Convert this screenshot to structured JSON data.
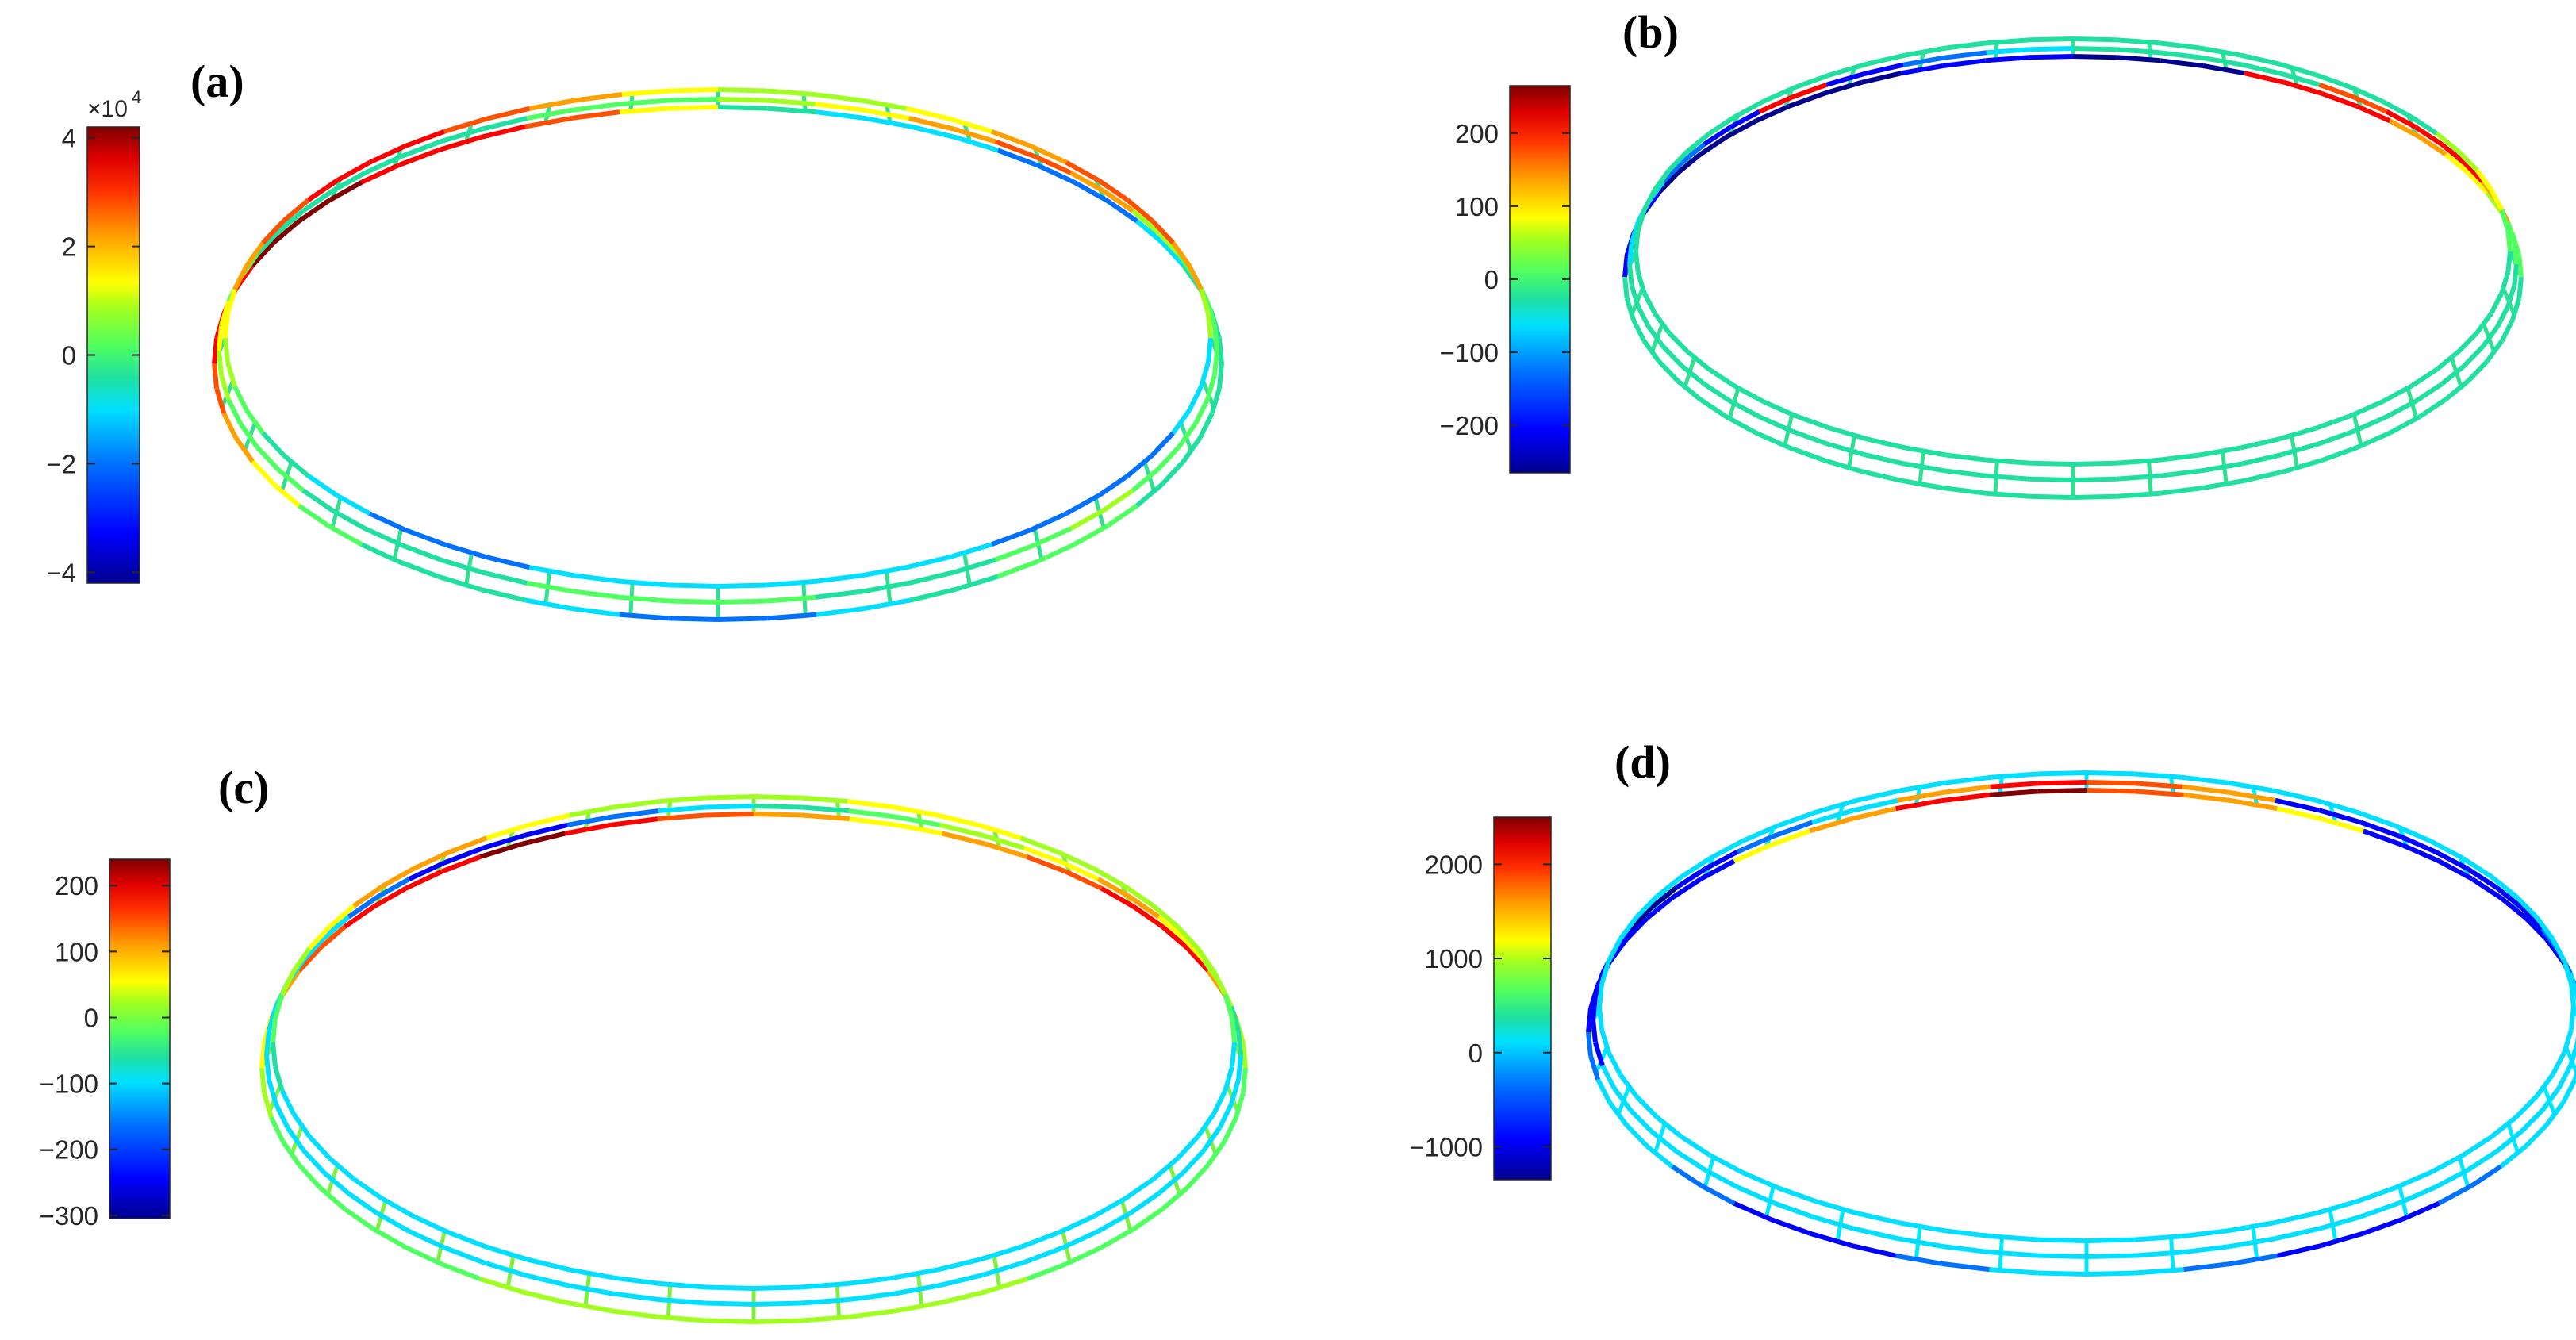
{
  "colormap": [
    "#00008f",
    "#0000ff",
    "#0070ff",
    "#00dfff",
    "#1fe0a0",
    "#50ff60",
    "#a0ff20",
    "#ffff00",
    "#ffa000",
    "#ff5000",
    "#ff0000",
    "#800000"
  ],
  "panels": [
    {
      "id": "a",
      "label": "(a)",
      "multiplier": "×10",
      "multiplier_exp": "4",
      "colorbar": {
        "min": -4.2,
        "max": 4.2,
        "ticks": [
          "4",
          "2",
          "0",
          "−2",
          "−4"
        ],
        "tick_values": [
          4,
          2,
          0,
          -2,
          -4
        ]
      },
      "rings": [
        {
          "name": "outer-ring",
          "palette": "a1"
        },
        {
          "name": "middle-ring",
          "palette": "a2"
        },
        {
          "name": "inner-ring",
          "palette": "a3"
        }
      ],
      "rung_color": "#30e090"
    },
    {
      "id": "b",
      "label": "(b)",
      "colorbar": {
        "min": -265,
        "max": 265,
        "ticks": [
          "200",
          "100",
          "0",
          "−100",
          "−200"
        ],
        "tick_values": [
          200,
          100,
          0,
          -100,
          -200
        ]
      },
      "rings": [
        {
          "name": "outer-ring",
          "palette": "b1"
        },
        {
          "name": "middle-ring",
          "palette": "b2"
        },
        {
          "name": "inner-ring",
          "palette": "b3"
        }
      ],
      "rung_color": "#30e090"
    },
    {
      "id": "c",
      "label": "(c)",
      "colorbar": {
        "min": -305,
        "max": 240,
        "ticks": [
          "200",
          "100",
          "0",
          "−100",
          "−200",
          "−300"
        ],
        "tick_values": [
          200,
          100,
          0,
          -100,
          -200,
          -300
        ]
      },
      "rings": [
        {
          "name": "outer-ring",
          "palette": "c1"
        },
        {
          "name": "middle-ring",
          "palette": "c2"
        },
        {
          "name": "inner-ring",
          "palette": "c3"
        }
      ],
      "rung_color": "#80f040"
    },
    {
      "id": "d",
      "label": "(d)",
      "colorbar": {
        "min": -1350,
        "max": 2500,
        "ticks": [
          "2000",
          "1000",
          "0",
          "−1000"
        ],
        "tick_values": [
          2000,
          1000,
          0,
          -1000
        ]
      },
      "rings": [
        {
          "name": "outer-ring",
          "palette": "d1"
        },
        {
          "name": "middle-ring",
          "palette": "d2"
        },
        {
          "name": "inner-ring",
          "palette": "d3"
        }
      ],
      "rung_color": "#00e8ff"
    }
  ]
}
